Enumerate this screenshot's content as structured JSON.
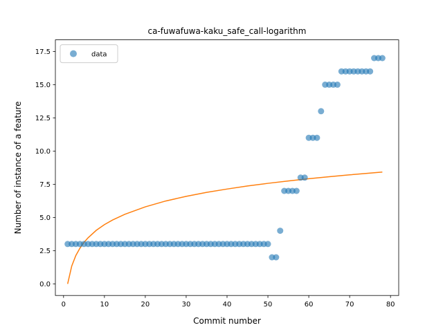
{
  "chart_data": {
    "type": "scatter",
    "title": "ca-fuwafuwa-kaku_safe_call-logarithm",
    "xlabel": "Commit number",
    "ylabel": "Number of instance of a feature",
    "xlim": [
      -2,
      82
    ],
    "ylim": [
      -0.875,
      18.375
    ],
    "xticks": [
      0,
      10,
      20,
      30,
      40,
      50,
      60,
      70,
      80
    ],
    "yticks": [
      0.0,
      2.5,
      5.0,
      7.5,
      10.0,
      12.5,
      15.0,
      17.5
    ],
    "ytick_labels": [
      "0.0",
      "2.5",
      "5.0",
      "7.5",
      "10.0",
      "12.5",
      "15.0",
      "17.5"
    ],
    "grid": false,
    "legend": {
      "position": "upper-left",
      "entries": [
        "data"
      ]
    },
    "colors": {
      "data": "#1f77b4",
      "fit": "#ff7f0e"
    },
    "series": [
      {
        "name": "data",
        "kind": "scatter",
        "x": [
          1,
          2,
          3,
          4,
          5,
          6,
          7,
          8,
          9,
          10,
          11,
          12,
          13,
          14,
          15,
          16,
          17,
          18,
          19,
          20,
          21,
          22,
          23,
          24,
          25,
          26,
          27,
          28,
          29,
          30,
          31,
          32,
          33,
          34,
          35,
          36,
          37,
          38,
          39,
          40,
          41,
          42,
          43,
          44,
          45,
          46,
          47,
          48,
          49,
          50,
          51,
          52,
          53,
          54,
          55,
          56,
          57,
          58,
          59,
          60,
          61,
          62,
          63,
          64,
          65,
          66,
          67,
          68,
          69,
          70,
          71,
          72,
          73,
          74,
          75,
          76,
          77,
          78
        ],
        "y": [
          3,
          3,
          3,
          3,
          3,
          3,
          3,
          3,
          3,
          3,
          3,
          3,
          3,
          3,
          3,
          3,
          3,
          3,
          3,
          3,
          3,
          3,
          3,
          3,
          3,
          3,
          3,
          3,
          3,
          3,
          3,
          3,
          3,
          3,
          3,
          3,
          3,
          3,
          3,
          3,
          3,
          3,
          3,
          3,
          3,
          3,
          3,
          3,
          3,
          3,
          2,
          2,
          4,
          7,
          7,
          7,
          7,
          8,
          8,
          11,
          11,
          11,
          13,
          15,
          15,
          15,
          15,
          16,
          16,
          16,
          16,
          16,
          16,
          16,
          16,
          17,
          17,
          17
        ]
      },
      {
        "kind": "line",
        "x": [
          1,
          2,
          3,
          4,
          5,
          6,
          8,
          10,
          12,
          15,
          20,
          25,
          30,
          35,
          40,
          45,
          50,
          55,
          60,
          65,
          70,
          75,
          78
        ],
        "y": [
          0.0,
          1.34,
          2.13,
          2.68,
          3.12,
          3.47,
          4.03,
          4.46,
          4.81,
          5.24,
          5.8,
          6.24,
          6.59,
          6.89,
          7.14,
          7.37,
          7.57,
          7.75,
          7.92,
          8.07,
          8.21,
          8.34,
          8.42
        ]
      }
    ]
  }
}
